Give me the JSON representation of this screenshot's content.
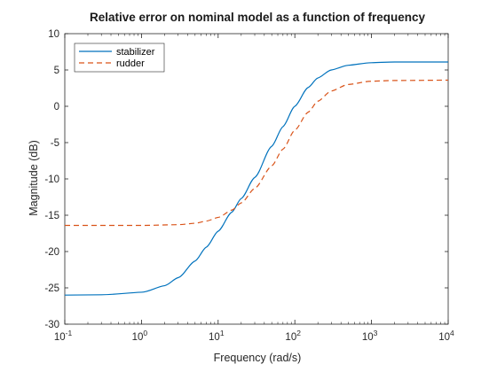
{
  "chart_data": {
    "type": "line",
    "title": "Relative error on nominal model as a function of frequency",
    "xlabel": "Frequency (rad/s)",
    "ylabel": "Magnitude (dB)",
    "xscale": "log",
    "xlim": [
      0.1,
      10000
    ],
    "ylim": [
      -30,
      10
    ],
    "x_ticks": [
      {
        "base": "10",
        "exp": "-1",
        "value": 0.1
      },
      {
        "base": "10",
        "exp": "0",
        "value": 1
      },
      {
        "base": "10",
        "exp": "1",
        "value": 10
      },
      {
        "base": "10",
        "exp": "2",
        "value": 100
      },
      {
        "base": "10",
        "exp": "3",
        "value": 1000
      },
      {
        "base": "10",
        "exp": "4",
        "value": 10000
      }
    ],
    "y_ticks": [
      "10",
      "5",
      "0",
      "-5",
      "-10",
      "-15",
      "-20",
      "-25",
      "-30"
    ],
    "grid": false,
    "legend": "top-left",
    "series": [
      {
        "name": "stabilizer",
        "color": "#0072BD",
        "style": "solid",
        "x": [
          0.1,
          0.3,
          1,
          2,
          3,
          5,
          7,
          10,
          15,
          20,
          30,
          50,
          70,
          100,
          150,
          200,
          300,
          500,
          1000,
          2000,
          10000
        ],
        "y": [
          -26.0,
          -25.95,
          -25.6,
          -24.7,
          -23.6,
          -21.3,
          -19.4,
          -17.2,
          -14.6,
          -12.7,
          -9.8,
          -5.5,
          -2.8,
          0.0,
          2.6,
          3.9,
          5.0,
          5.65,
          6.0,
          6.1,
          6.1
        ]
      },
      {
        "name": "rudder",
        "color": "#D95319",
        "style": "dashed",
        "x": [
          0.1,
          1,
          3,
          5,
          7,
          10,
          15,
          20,
          30,
          50,
          70,
          100,
          150,
          200,
          300,
          500,
          1000,
          2000,
          10000
        ],
        "y": [
          -16.4,
          -16.4,
          -16.3,
          -16.1,
          -15.8,
          -15.3,
          -14.3,
          -13.3,
          -11.3,
          -8.2,
          -5.9,
          -3.3,
          -0.8,
          0.7,
          2.1,
          3.0,
          3.45,
          3.55,
          3.6
        ]
      }
    ]
  }
}
